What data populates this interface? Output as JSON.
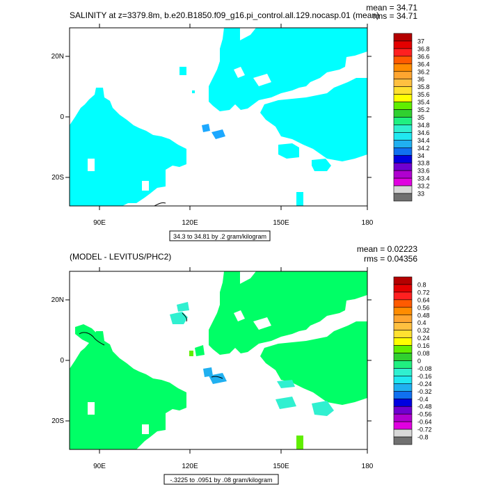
{
  "chart_data": [
    {
      "type": "heatmap",
      "title": "SALINITY at z=3379.8m, b.e20.B1850.f09_g16.pi_control.all.129.nocasp.01 (mean)",
      "mean_label": "mean = 34.71",
      "rms_label": "rms = 34.71",
      "contour_info": "34.3 to 34.81 by .2 gram/kilogram",
      "x_ticks": [
        "90E",
        "120E",
        "150E",
        "180"
      ],
      "y_ticks": [
        "20N",
        "0",
        "20S"
      ],
      "xlim": [
        80,
        180
      ],
      "ylim": [
        -30,
        30
      ],
      "colorbar_labels": [
        "37",
        "36.8",
        "36.6",
        "36.4",
        "36.2",
        "36",
        "35.8",
        "35.6",
        "35.4",
        "35.2",
        "35",
        "34.8",
        "34.6",
        "34.4",
        "34.2",
        "34",
        "33.8",
        "33.6",
        "33.4",
        "33.2",
        "33"
      ],
      "colors": [
        "#b40000",
        "#e40000",
        "#ff2020",
        "#ff5a00",
        "#ff8c00",
        "#ffa530",
        "#ffc040",
        "#ffe030",
        "#ffff00",
        "#60ee00",
        "#30d030",
        "#20f080",
        "#30f0d0",
        "#20e8f0",
        "#20b0f0",
        "#1070f0",
        "#0000e0",
        "#7000d0",
        "#b000d0",
        "#e000e0",
        "#d8d8d8",
        "#707070"
      ],
      "dominant_color": "#00ffff"
    },
    {
      "type": "heatmap",
      "title": "(MODEL - LEVITUS/PHC2)",
      "mean_label": "mean = 0.02223",
      "rms_label": "rms = 0.04356",
      "contour_info": "-.3225 to .0951 by .08 gram/kilogram",
      "x_ticks": [
        "90E",
        "120E",
        "150E",
        "180"
      ],
      "y_ticks": [
        "20N",
        "0",
        "20S"
      ],
      "xlim": [
        80,
        180
      ],
      "ylim": [
        -30,
        30
      ],
      "colorbar_labels": [
        "0.8",
        "0.72",
        "0.64",
        "0.56",
        "0.48",
        "0.4",
        "0.32",
        "0.24",
        "0.16",
        "0.08",
        "0",
        "-0.08",
        "-0.16",
        "-0.24",
        "-0.32",
        "-0.4",
        "-0.48",
        "-0.56",
        "-0.64",
        "-0.72",
        "-0.8"
      ],
      "colors": [
        "#b40000",
        "#e40000",
        "#ff2020",
        "#ff5a00",
        "#ff8c00",
        "#ffa530",
        "#ffc040",
        "#ffe030",
        "#ffff00",
        "#60ee00",
        "#30d030",
        "#20f080",
        "#30f0d0",
        "#20e8f0",
        "#20b0f0",
        "#1070f0",
        "#0000e0",
        "#7000d0",
        "#b000d0",
        "#e000e0",
        "#d8d8d8",
        "#707070"
      ],
      "dominant_color": "#00ff66"
    }
  ]
}
